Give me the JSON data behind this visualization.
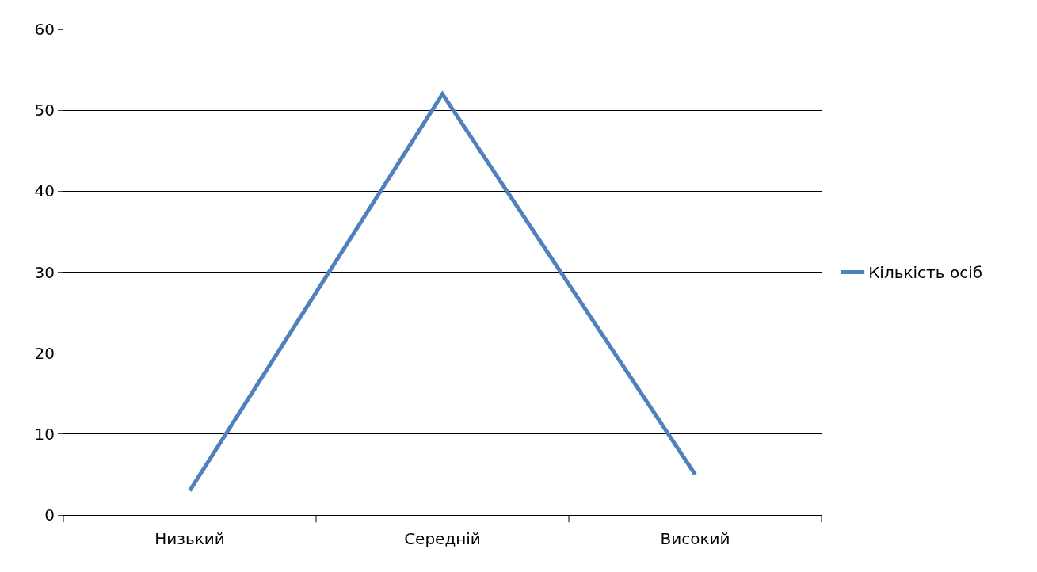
{
  "chart_data": {
    "type": "line",
    "categories": [
      "Низький",
      "Середній",
      "Високий"
    ],
    "series": [
      {
        "name": "Кількість осіб",
        "color": "#4f81bd",
        "values": [
          3,
          52,
          5
        ]
      }
    ],
    "ylim": [
      0,
      60
    ],
    "yticks": [
      0,
      10,
      20,
      30,
      40,
      50,
      60
    ],
    "grid": "y",
    "legend": "right",
    "marker": "none",
    "line_style": "solid"
  }
}
